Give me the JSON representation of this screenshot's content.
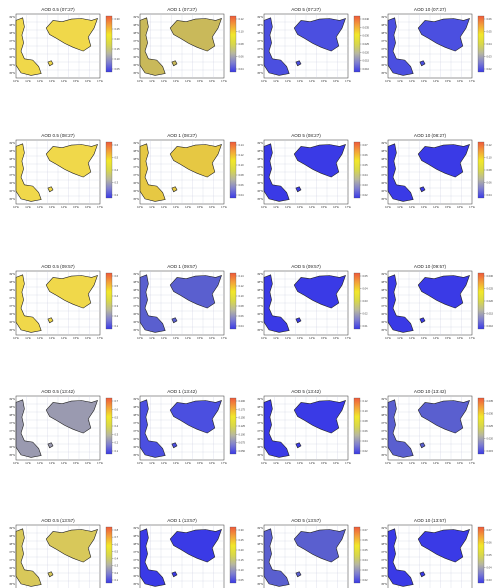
{
  "figure": {
    "lon_ticks": [
      "10°E",
      "11°E",
      "12°E",
      "13°E",
      "14°E",
      "15°E",
      "16°E",
      "17°E"
    ],
    "lat_ticks": [
      "39°N",
      "38°N",
      "38°N",
      "37°N",
      "37°N",
      "36°N",
      "36°N",
      "35°N"
    ],
    "map_colors": {
      "sea": "#ffffff",
      "grid": "#c9cde0",
      "coast": "#222222"
    },
    "colormap": [
      "#3a3ae6",
      "#7f7fd0",
      "#b7b7a0",
      "#d8d84a",
      "#f2e82a",
      "#f3a23a",
      "#ef5a3a"
    ]
  },
  "chart_data": [
    {
      "type": "heatmap",
      "title": "AOD 0.5 (07:27)",
      "dominant_fill": "#f0d84a",
      "colorbar_ticks": [
        "0.30",
        "0.25",
        "0.20",
        "0.15",
        "0.10",
        "0.05"
      ]
    },
    {
      "type": "heatmap",
      "title": "AOD 1 (07:27)",
      "dominant_fill": "#c9b95a",
      "colorbar_ticks": [
        "0.12",
        "0.10",
        "0.08",
        "0.06",
        "0.04"
      ]
    },
    {
      "type": "heatmap",
      "title": "AOD 5 (07:27)",
      "dominant_fill": "#4b4fe0",
      "colorbar_ticks": [
        "0.040",
        "0.035",
        "0.030",
        "0.025",
        "0.020",
        "0.015",
        "0.010"
      ]
    },
    {
      "type": "heatmap",
      "title": "AOD 10 (07:27)",
      "dominant_fill": "#4b4fe0",
      "colorbar_ticks": [
        "0.06",
        "0.05",
        "0.04",
        "0.03",
        "0.02"
      ]
    },
    {
      "type": "heatmap",
      "title": "AOD 0.5 (08:27)",
      "dominant_fill": "#f0d84a",
      "colorbar_ticks": [
        "0.6",
        "0.5",
        "0.4",
        "0.3",
        "0.2"
      ]
    },
    {
      "type": "heatmap",
      "title": "AOD 1 (08:27)",
      "dominant_fill": "#e6c843",
      "colorbar_ticks": [
        "0.14",
        "0.12",
        "0.10",
        "0.08",
        "0.06",
        "0.04"
      ]
    },
    {
      "type": "heatmap",
      "title": "AOD 5 (08:27)",
      "dominant_fill": "#3a3ae6",
      "colorbar_ticks": [
        "0.07",
        "0.06",
        "0.05",
        "0.04",
        "0.03",
        "0.02"
      ]
    },
    {
      "type": "heatmap",
      "title": "AOD 10 (08:27)",
      "dominant_fill": "#3a3ae6",
      "colorbar_ticks": [
        "0.12",
        "0.10",
        "0.08",
        "0.06",
        "0.04"
      ]
    },
    {
      "type": "heatmap",
      "title": "AOD 0.5 (09:57)",
      "dominant_fill": "#f0d84a",
      "colorbar_ticks": [
        "0.6",
        "0.5",
        "0.4",
        "0.3",
        "0.2",
        "0.1"
      ]
    },
    {
      "type": "heatmap",
      "title": "AOD 1 (09:57)",
      "dominant_fill": "#5a5fcf",
      "colorbar_ticks": [
        "0.14",
        "0.12",
        "0.10",
        "0.08",
        "0.06",
        "0.04"
      ]
    },
    {
      "type": "heatmap",
      "title": "AOD 5 (09:57)",
      "dominant_fill": "#3a3ae6",
      "colorbar_ticks": [
        "0.05",
        "0.04",
        "0.03",
        "0.02",
        "0.01"
      ]
    },
    {
      "type": "heatmap",
      "title": "AOD 10 (09:57)",
      "dominant_fill": "#3a3ae6",
      "colorbar_ticks": [
        "0.030",
        "0.025",
        "0.020",
        "0.015",
        "0.010"
      ]
    },
    {
      "type": "heatmap",
      "title": "AOD 0.5 (13:42)",
      "dominant_fill": "#9a9ab0",
      "colorbar_ticks": [
        "0.7",
        "0.6",
        "0.5",
        "0.4",
        "0.3",
        "0.2",
        "0.1"
      ]
    },
    {
      "type": "heatmap",
      "title": "AOD 1 (13:42)",
      "dominant_fill": "#4b4fe0",
      "colorbar_ticks": [
        "0.200",
        "0.175",
        "0.150",
        "0.125",
        "0.100",
        "0.075",
        "0.050"
      ]
    },
    {
      "type": "heatmap",
      "title": "AOD 5 (13:42)",
      "dominant_fill": "#3a3ae6",
      "colorbar_ticks": [
        "0.12",
        "0.10",
        "0.08",
        "0.06",
        "0.04",
        "0.02"
      ]
    },
    {
      "type": "heatmap",
      "title": "AOD 10 (13:42)",
      "dominant_fill": "#5a5fcf",
      "colorbar_ticks": [
        "0.035",
        "0.030",
        "0.025",
        "0.020",
        "0.015"
      ]
    },
    {
      "type": "heatmap",
      "title": "AOD 0.5 (13:57)",
      "dominant_fill": "#d8c85a",
      "colorbar_ticks": [
        "0.8",
        "0.7",
        "0.6",
        "0.5",
        "0.4",
        "0.3",
        "0.2",
        "0.1"
      ]
    },
    {
      "type": "heatmap",
      "title": "AOD 1 (13:57)",
      "dominant_fill": "#3a3ae6",
      "colorbar_ticks": [
        "0.30",
        "0.25",
        "0.20",
        "0.15",
        "0.10",
        "0.05"
      ]
    },
    {
      "type": "heatmap",
      "title": "AOD 5 (13:57)",
      "dominant_fill": "#5a5fcf",
      "colorbar_ticks": [
        "0.07",
        "0.06",
        "0.05",
        "0.04",
        "0.03",
        "0.02"
      ]
    },
    {
      "type": "heatmap",
      "title": "AOD 10 (13:57)",
      "dominant_fill": "#3a3ae6",
      "colorbar_ticks": [
        "0.07",
        "0.06",
        "0.05",
        "0.04",
        "0.03"
      ]
    }
  ]
}
